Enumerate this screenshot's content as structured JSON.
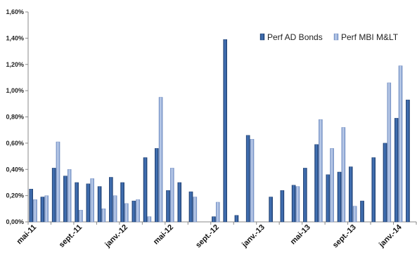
{
  "chart_data": {
    "type": "bar",
    "ylim": [
      0,
      1.6
    ],
    "yticks": [
      "0,00%",
      "0,20%",
      "0,40%",
      "0,60%",
      "0,80%",
      "1,00%",
      "1,20%",
      "1,40%",
      "1,60%"
    ],
    "x_tick_labels": [
      {
        "label": "mai-11",
        "index": 0
      },
      {
        "label": "sept.-11",
        "index": 4
      },
      {
        "label": "janv.-12",
        "index": 8
      },
      {
        "label": "mai-12",
        "index": 12
      },
      {
        "label": "sept.-12",
        "index": 16
      },
      {
        "label": "janv.-13",
        "index": 20
      },
      {
        "label": "mai-13",
        "index": 24
      },
      {
        "label": "sept.-13",
        "index": 28
      },
      {
        "label": "janv.-14",
        "index": 32
      }
    ],
    "legend_position": "top-right",
    "grid": false,
    "series": [
      {
        "name": "Perf AD Bonds",
        "color": "#2f5c99",
        "values": [
          0.25,
          0.19,
          0.41,
          0.35,
          0.3,
          0.29,
          0.27,
          0.34,
          0.3,
          0.16,
          0.49,
          0.56,
          0.24,
          0.3,
          0.23,
          null,
          0.04,
          1.39,
          0.05,
          0.66,
          null,
          0.19,
          0.24,
          0.28,
          0.41,
          0.59,
          0.36,
          0.38,
          0.42,
          0.16,
          0.49,
          0.6,
          0.79,
          0.93
        ]
      },
      {
        "name": "Perf MBI M&LT",
        "color": "#94acd8",
        "values": [
          0.17,
          0.2,
          0.61,
          0.4,
          0.09,
          0.33,
          0.1,
          0.2,
          0.14,
          0.17,
          0.04,
          0.95,
          0.41,
          null,
          0.19,
          null,
          0.15,
          null,
          null,
          0.63,
          null,
          null,
          null,
          0.27,
          null,
          0.78,
          0.56,
          0.72,
          0.12,
          null,
          null,
          1.06,
          1.19,
          null
        ]
      }
    ]
  }
}
